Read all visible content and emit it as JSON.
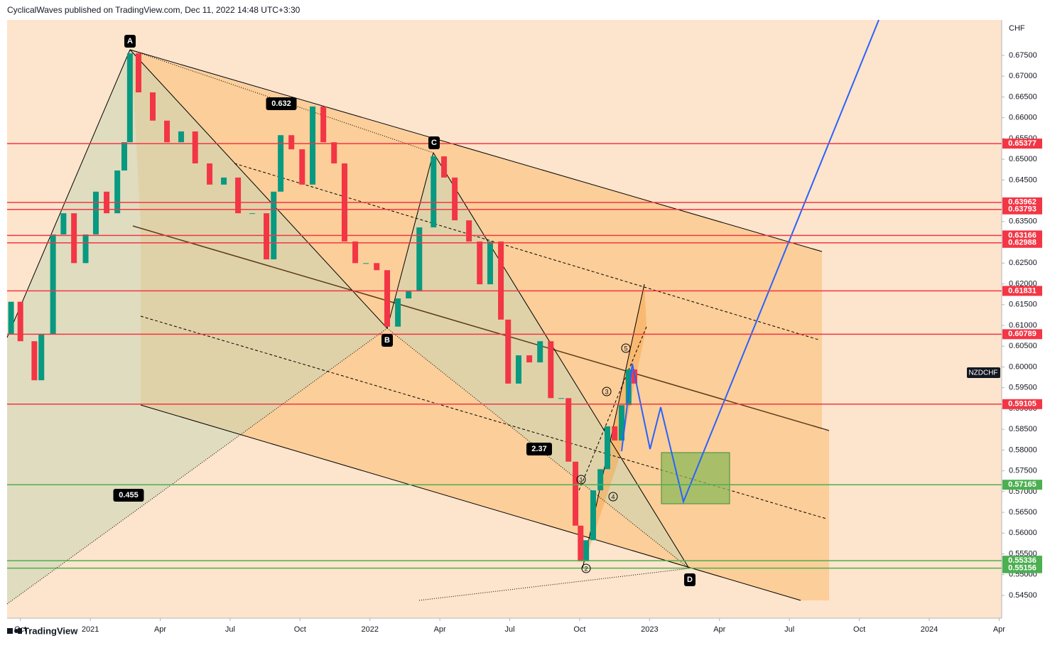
{
  "header": {
    "text": "CyclicalWaves published on TradingView.com, Dec 11, 2022 14:48 UTC+3:30"
  },
  "chart_data": {
    "type": "candlestick",
    "y_label": "CHF",
    "x": [
      -3.55,
      -3.4,
      -3.0,
      -2.4,
      -2.1,
      -1.6,
      -1.15,
      -0.7,
      -0.2,
      0.24,
      0.7,
      1.16,
      1.46,
      1.7,
      2.07,
      2.68,
      3.29,
      3.9,
      4.5,
      5.12,
      5.73,
      6.34,
      6.95,
      7.56,
      7.87,
      8.17,
      8.63,
      9.09,
      9.54,
      10.0,
      10.46,
      10.91,
      11.37,
      11.83,
      12.29,
      12.74,
      13.2,
      13.66,
      14.12,
      14.73,
      15.18,
      15.64,
      16.25,
      16.71,
      17.16,
      17.62,
      17.93,
      18.38,
      18.84,
      19.3,
      19.76,
      20.21,
      20.52,
      20.82,
      21.04,
      21.28,
      21.58,
      21.89,
      22.19,
      22.5,
      22.8,
      23.1,
      23.35
    ],
    "series": [
      {
        "name": "NZDCHF",
        "values": [
          0.6079,
          0.6157,
          0.6062,
          0.5968,
          0.6079,
          0.6319,
          0.637,
          0.625,
          0.6319,
          0.6422,
          0.637,
          0.6473,
          0.6541,
          0.6755,
          0.6661,
          0.6593,
          0.6541,
          0.6567,
          0.649,
          0.6439,
          0.6456,
          0.637,
          0.637,
          0.6259,
          0.6422,
          0.6558,
          0.6524,
          0.6439,
          0.6627,
          0.6541,
          0.649,
          0.6302,
          0.625,
          0.625,
          0.6233,
          0.6097,
          0.6165,
          0.6182,
          0.6336,
          0.6507,
          0.6456,
          0.6353,
          0.6302,
          0.6199,
          0.6302,
          0.6114,
          0.596,
          0.6028,
          0.6011,
          0.6062,
          0.5925,
          0.5925,
          0.5772,
          0.5618,
          0.5532,
          0.5583,
          0.5703,
          0.5754,
          0.5857,
          0.5823,
          0.5908,
          0.5994,
          0.596
        ]
      }
    ],
    "up_color": "#089981",
    "down_color": "#f23645",
    "xlim": [
      -3.57,
      39.11
    ],
    "xticks": [
      {
        "value": -3,
        "label": "Oct"
      },
      {
        "value": 0,
        "label": "2021"
      },
      {
        "value": 3,
        "label": "Apr"
      },
      {
        "value": 6,
        "label": "Jul"
      },
      {
        "value": 9,
        "label": "Oct"
      },
      {
        "value": 12,
        "label": "2022"
      },
      {
        "value": 15,
        "label": "Apr"
      },
      {
        "value": 18,
        "label": "Jul"
      },
      {
        "value": 21,
        "label": "Oct"
      },
      {
        "value": 24,
        "label": "2023"
      },
      {
        "value": 27,
        "label": "Apr"
      },
      {
        "value": 30,
        "label": "Jul"
      },
      {
        "value": 33,
        "label": "Oct"
      },
      {
        "value": 36,
        "label": "2024"
      },
      {
        "value": 39,
        "label": "Apr"
      }
    ],
    "ylim": [
      0.53953,
      0.68355
    ],
    "yticks": [
      {
        "value": 0.545,
        "label": "0.54500"
      },
      {
        "value": 0.55,
        "label": "0.55000"
      },
      {
        "value": 0.555,
        "label": "0.55500"
      },
      {
        "value": 0.56,
        "label": "0.56000"
      },
      {
        "value": 0.565,
        "label": "0.56500"
      },
      {
        "value": 0.57,
        "label": "0.57000"
      },
      {
        "value": 0.575,
        "label": "0.57500"
      },
      {
        "value": 0.58,
        "label": "0.58000"
      },
      {
        "value": 0.585,
        "label": "0.58500"
      },
      {
        "value": 0.59,
        "label": "0.59000"
      },
      {
        "value": 0.595,
        "label": "0.59500"
      },
      {
        "value": 0.6,
        "label": "0.60000"
      },
      {
        "value": 0.605,
        "label": "0.60500"
      },
      {
        "value": 0.61,
        "label": "0.61000"
      },
      {
        "value": 0.615,
        "label": "0.61500"
      },
      {
        "value": 0.62,
        "label": "0.62000"
      },
      {
        "value": 0.625,
        "label": "0.62500"
      },
      {
        "value": 0.63,
        "label": "0.63000"
      },
      {
        "value": 0.635,
        "label": "0.63500"
      },
      {
        "value": 0.64,
        "label": "0.64000"
      },
      {
        "value": 0.645,
        "label": "0.64500"
      },
      {
        "value": 0.65,
        "label": "0.65000"
      },
      {
        "value": 0.655,
        "label": "0.65500"
      },
      {
        "value": 0.66,
        "label": "0.66000"
      },
      {
        "value": 0.665,
        "label": "0.66500"
      },
      {
        "value": 0.67,
        "label": "0.67000"
      },
      {
        "value": 0.675,
        "label": "0.67500"
      }
    ],
    "levels": [
      {
        "value": 0.65377,
        "color": "#f23645"
      },
      {
        "value": 0.63962,
        "color": "#f23645"
      },
      {
        "value": 0.63793,
        "color": "#f23645"
      },
      {
        "value": 0.63166,
        "color": "#f23645"
      },
      {
        "value": 0.62988,
        "color": "#f23645"
      },
      {
        "value": 0.61831,
        "color": "#f23645"
      },
      {
        "value": 0.60789,
        "color": "#f23645"
      },
      {
        "value": 0.59105,
        "color": "#f23645"
      },
      {
        "value": 0.57165,
        "color": "#4caf50"
      },
      {
        "value": 0.55336,
        "color": "#4caf50"
      },
      {
        "value": 0.55156,
        "color": "#4caf50"
      }
    ],
    "annotations": [
      "A",
      "B",
      "C",
      "D",
      "0.632",
      "0.455",
      "2.37",
      "1",
      "2",
      "3",
      "4",
      "5"
    ]
  },
  "footer": {
    "brand": "TradingView"
  }
}
